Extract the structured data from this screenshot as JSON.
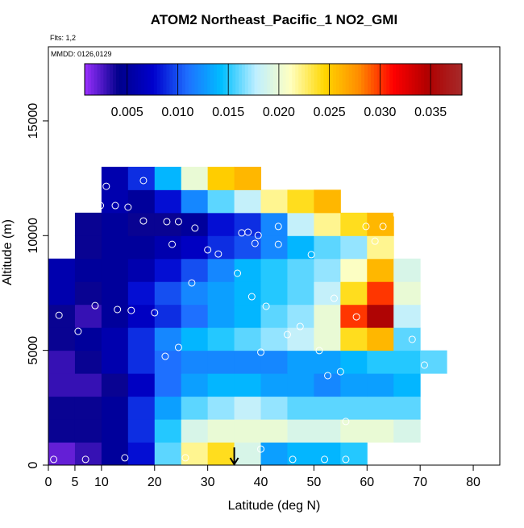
{
  "chart_data": {
    "type": "heatmap",
    "title": "ATOM2 Northeast_Pacific_1 NO2_GMI",
    "annotations": [
      "Flts: 1,2",
      "MMDD: 0126,0129"
    ],
    "x_label": "Latitude (deg N)",
    "y_label": "Altitude (m)",
    "xlim": [
      0,
      85
    ],
    "ylim": [
      0,
      18230
    ],
    "xticks": [
      0,
      5,
      10,
      20,
      30,
      40,
      50,
      60,
      70,
      80
    ],
    "yticks": [
      0,
      5000,
      10000,
      15000
    ],
    "x_edges": [
      0,
      5,
      10,
      15,
      20,
      25,
      30,
      35,
      40,
      45,
      50,
      55,
      60,
      65,
      70,
      75
    ],
    "y_edges": [
      0,
      1000,
      2000,
      3000,
      4000,
      5000,
      6000,
      7000,
      8000,
      9000,
      10000,
      11000,
      12000,
      13000
    ],
    "z": [
      [
        0.002,
        0.003,
        0.005,
        0.008,
        0.016,
        0.022,
        0.024,
        0.019,
        0.013,
        0.014,
        0.014,
        0.015,
        null,
        null,
        null
      ],
      [
        0.004,
        0.004,
        0.005,
        0.009,
        0.015,
        0.019,
        0.02,
        0.02,
        0.02,
        0.019,
        0.019,
        0.02,
        0.02,
        0.019,
        null
      ],
      [
        0.004,
        0.004,
        0.005,
        0.009,
        0.013,
        0.016,
        0.017,
        0.018,
        0.017,
        0.016,
        0.016,
        0.016,
        0.016,
        0.016,
        null
      ],
      [
        0.003,
        0.003,
        0.004,
        0.007,
        0.011,
        0.013,
        0.014,
        0.014,
        0.013,
        0.013,
        0.012,
        0.013,
        0.013,
        0.014,
        null
      ],
      [
        0.003,
        0.004,
        0.006,
        0.009,
        0.011,
        0.012,
        0.012,
        0.012,
        0.012,
        0.013,
        0.013,
        0.014,
        0.015,
        0.015,
        0.016
      ],
      [
        0.004,
        0.005,
        0.006,
        0.009,
        0.012,
        0.014,
        0.015,
        0.016,
        0.017,
        0.018,
        0.02,
        0.024,
        0.026,
        0.016,
        null
      ],
      [
        0.004,
        0.003,
        0.005,
        0.007,
        0.009,
        0.011,
        0.013,
        0.014,
        0.016,
        0.017,
        0.02,
        0.03,
        0.035,
        0.018,
        null
      ],
      [
        0.006,
        0.004,
        0.005,
        0.008,
        0.01,
        0.012,
        0.013,
        0.014,
        0.015,
        0.016,
        0.018,
        0.024,
        0.03,
        0.02,
        null
      ],
      [
        0.006,
        0.005,
        0.005,
        0.006,
        0.008,
        0.01,
        0.012,
        0.014,
        0.015,
        0.016,
        0.017,
        0.021,
        0.026,
        0.019,
        null
      ],
      [
        null,
        0.004,
        0.005,
        0.005,
        0.006,
        0.007,
        0.009,
        0.01,
        0.012,
        0.014,
        0.016,
        0.017,
        0.022,
        null,
        null
      ],
      [
        null,
        0.004,
        0.005,
        0.004,
        0.004,
        0.005,
        0.008,
        0.009,
        0.012,
        0.018,
        0.022,
        0.024,
        0.026,
        null,
        null
      ],
      [
        null,
        null,
        0.006,
        0.005,
        0.008,
        0.012,
        0.016,
        0.018,
        0.022,
        0.024,
        0.026,
        null,
        null,
        null,
        null
      ],
      [
        null,
        null,
        0.006,
        0.009,
        0.014,
        0.02,
        0.025,
        0.026,
        null,
        null,
        null,
        null,
        null,
        null,
        null
      ]
    ],
    "clim": [
      0.0008,
      0.0381
    ],
    "colors": [
      "#9b30ff",
      "#00008b",
      "#0000cd",
      "#1e6fff",
      "#00bfff",
      "#bfefff",
      "#ffffc0",
      "#ffd700",
      "#ff8c00",
      "#ff0000",
      "#b00000",
      "#a52a2a"
    ],
    "cticks": [
      0.005,
      {
        "value": 0.01,
        "label": "0.010"
      },
      0.015,
      {
        "value": 0.02,
        "label": "0.020"
      },
      0.025,
      {
        "value": 0.03,
        "label": "0.030"
      },
      0.035
    ],
    "points": {
      "x": [
        1,
        7,
        14.4,
        25.8,
        46,
        52,
        56,
        40,
        70,
        56,
        52.6,
        55,
        22,
        24.5,
        40,
        51,
        70.8,
        68.5,
        5.6,
        45,
        47.4,
        58,
        2,
        8.8,
        13,
        15.6,
        20,
        41,
        38.3,
        53.8,
        27,
        35.6,
        49.5,
        23.3,
        30,
        32,
        43.3,
        38.9,
        36.4,
        37.6,
        39.5,
        61.5,
        27.6,
        24.5,
        17.9,
        22.3,
        43.3,
        59.8,
        63,
        65.6,
        4,
        9.8,
        12.6,
        15,
        7.3,
        10.9,
        17.9
      ],
      "y": [
        250,
        250,
        320,
        320,
        250,
        250,
        250,
        700,
        770,
        1900,
        3900,
        4070,
        4740,
        5130,
        4920,
        4990,
        4360,
        5480,
        5830,
        5690,
        6040,
        6460,
        6530,
        6950,
        6780,
        6740,
        6640,
        6920,
        7340,
        7270,
        7940,
        8360,
        9170,
        9620,
        9380,
        9200,
        9620,
        9660,
        10120,
        10150,
        10010,
        9760,
        10330,
        10610,
        10640,
        10610,
        10400,
        10400,
        10400,
        10920,
        11310,
        11310,
        11310,
        11240,
        11310,
        12150,
        12400
      ]
    },
    "arrow_lat": 35
  }
}
